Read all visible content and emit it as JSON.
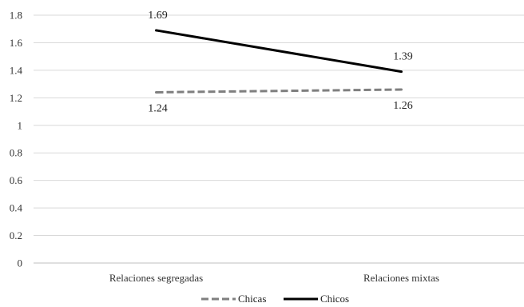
{
  "chart_data": {
    "type": "line",
    "title": "",
    "xlabel": "",
    "ylabel": "",
    "categories": [
      "Relaciones segregadas",
      "Relaciones mixtas"
    ],
    "ylim": [
      0,
      1.8
    ],
    "yticks": [
      "0",
      "0.2",
      "0.4",
      "0.6",
      "0.8",
      "1",
      "1.2",
      "1.4",
      "1.6",
      "1.8"
    ],
    "grid": true,
    "legend_position": "bottom",
    "series": [
      {
        "name": "Chicas",
        "values": [
          1.24,
          1.26
        ],
        "value_labels": [
          "1.24",
          "1.26"
        ],
        "color": "#7f7f7f",
        "style": "dashed",
        "label_placement": "below"
      },
      {
        "name": "Chicos",
        "values": [
          1.69,
          1.39
        ],
        "value_labels": [
          "1.69",
          "1.39"
        ],
        "color": "#000000",
        "style": "solid",
        "label_placement": "above"
      }
    ]
  }
}
